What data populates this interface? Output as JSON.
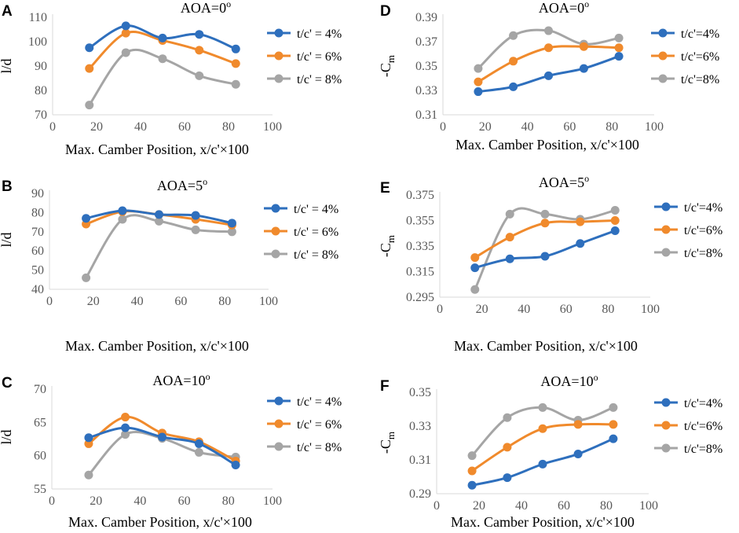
{
  "colors": {
    "blue": "#2e6fbd",
    "orange": "#f08a2c",
    "gray": "#a5a5a5",
    "axis": "#d9d9d9"
  },
  "chart_data": [
    {
      "panel": "A",
      "type": "line",
      "title": "AOA=0",
      "title_sup": "o",
      "xlabel": "Max. Camber Position, x/c'×100",
      "ylabel": "l/d",
      "ylabel_sub": "",
      "xlim": [
        0,
        100
      ],
      "ylim": [
        70,
        110
      ],
      "xticks": [
        0,
        20,
        40,
        60,
        80,
        100
      ],
      "xtick_labels": [
        "0",
        "20",
        "40",
        "60",
        "80",
        "100"
      ],
      "yticks": [
        70,
        80,
        90,
        100,
        110
      ],
      "ytick_labels": [
        "70",
        "80",
        "90",
        "100",
        "110"
      ],
      "x": [
        16.7,
        33.3,
        50,
        66.7,
        83.3
      ],
      "series": [
        {
          "name": "t/c' = 4%",
          "values": [
            97.5,
            106.5,
            101.5,
            103,
            97
          ]
        },
        {
          "name": "t/c' = 6%",
          "values": [
            89,
            103.5,
            100.5,
            96.5,
            91
          ]
        },
        {
          "name": "t/c' = 8%",
          "values": [
            74,
            95.5,
            93,
            86,
            82.5
          ]
        }
      ]
    },
    {
      "panel": "B",
      "type": "line",
      "title": "AOA=5",
      "title_sup": "o",
      "xlabel": "Max. Camber Position, x/c'×100",
      "ylabel": "l/d",
      "ylabel_sub": "",
      "xlim": [
        0,
        100
      ],
      "ylim": [
        40,
        90
      ],
      "xticks": [
        0,
        20,
        40,
        60,
        80,
        100
      ],
      "xtick_labels": [
        "0",
        "20",
        "40",
        "60",
        "80",
        "100"
      ],
      "yticks": [
        40,
        50,
        60,
        70,
        80,
        90
      ],
      "ytick_labels": [
        "40",
        "50",
        "60",
        "70",
        "80",
        "90"
      ],
      "x": [
        16.7,
        33.3,
        50,
        66.7,
        83.3
      ],
      "series": [
        {
          "name": "t/c' = 4%",
          "values": [
            77,
            81,
            79,
            78.5,
            74.5
          ]
        },
        {
          "name": "t/c' = 6%",
          "values": [
            74,
            80.5,
            79,
            76.5,
            73.5
          ]
        },
        {
          "name": "t/c' = 8%",
          "values": [
            46,
            76.5,
            75.5,
            71,
            70
          ]
        }
      ]
    },
    {
      "panel": "C",
      "type": "line",
      "title": "AOA=10",
      "title_sup": "o",
      "xlabel": "Max. Camber Position, x/c'×100",
      "ylabel": "l/d",
      "ylabel_sub": "",
      "xlim": [
        0,
        100
      ],
      "ylim": [
        55,
        70
      ],
      "xticks": [
        0,
        20,
        40,
        60,
        80,
        100
      ],
      "xtick_labels": [
        "0",
        "20",
        "40",
        "60",
        "80",
        "100"
      ],
      "yticks": [
        55,
        60,
        65,
        70
      ],
      "ytick_labels": [
        "55",
        "60",
        "65",
        "70"
      ],
      "x": [
        16.7,
        33.3,
        50,
        66.7,
        83.3
      ],
      "series": [
        {
          "name": "t/c' = 4%",
          "values": [
            62.7,
            64.2,
            62.8,
            61.8,
            58.6
          ]
        },
        {
          "name": "t/c' = 6%",
          "values": [
            61.8,
            65.8,
            63.4,
            62.1,
            59.2
          ]
        },
        {
          "name": "t/c' = 8%",
          "values": [
            57.1,
            63.2,
            62.6,
            60.5,
            59.8
          ]
        }
      ]
    },
    {
      "panel": "D",
      "type": "line",
      "title": "AOA=0",
      "title_sup": "o",
      "xlabel": "Max. Camber Position, x/c'×100",
      "ylabel": "-C",
      "ylabel_sub": "m",
      "xlim": [
        0,
        100
      ],
      "ylim": [
        0.31,
        0.39
      ],
      "xticks": [
        0,
        20,
        40,
        60,
        80,
        100
      ],
      "xtick_labels": [
        "0",
        "20",
        "40",
        "60",
        "80",
        "100"
      ],
      "yticks": [
        0.31,
        0.33,
        0.35,
        0.37,
        0.39
      ],
      "ytick_labels": [
        "0.31",
        "0.33",
        "0.35",
        "0.37",
        "0.39"
      ],
      "x": [
        16.7,
        33.3,
        50,
        66.7,
        83.3
      ],
      "series": [
        {
          "name": "t/c'=4%",
          "values": [
            0.329,
            0.333,
            0.342,
            0.348,
            0.358
          ]
        },
        {
          "name": "t/c'=6%",
          "values": [
            0.337,
            0.354,
            0.365,
            0.366,
            0.365
          ]
        },
        {
          "name": "t/c'=8%",
          "values": [
            0.348,
            0.375,
            0.379,
            0.368,
            0.373
          ]
        }
      ]
    },
    {
      "panel": "E",
      "type": "line",
      "title": "AOA=5",
      "title_sup": "o",
      "xlabel": "Max. Camber Position, x/c'×100",
      "ylabel": "-C",
      "ylabel_sub": "m",
      "xlim": [
        0,
        100
      ],
      "ylim": [
        0.295,
        0.375
      ],
      "xticks": [
        0,
        20,
        40,
        60,
        80,
        100
      ],
      "xtick_labels": [
        "0",
        "20",
        "40",
        "60",
        "80",
        "100"
      ],
      "yticks": [
        0.295,
        0.315,
        0.335,
        0.355,
        0.375
      ],
      "ytick_labels": [
        "0.295",
        "0.315",
        "0.335",
        "0.355",
        "0.375"
      ],
      "x": [
        16.7,
        33.3,
        50,
        66.7,
        83.3
      ],
      "series": [
        {
          "name": "t/c'=4%",
          "values": [
            0.318,
            0.325,
            0.327,
            0.337,
            0.347
          ]
        },
        {
          "name": "t/c'=6%",
          "values": [
            0.326,
            0.342,
            0.353,
            0.354,
            0.355
          ]
        },
        {
          "name": "t/c'=8%",
          "values": [
            0.301,
            0.36,
            0.36,
            0.356,
            0.363
          ]
        }
      ]
    },
    {
      "panel": "F",
      "type": "line",
      "title": "AOA=10",
      "title_sup": "o",
      "xlabel": "Max. Camber Position, x/c'×100",
      "ylabel": "-C",
      "ylabel_sub": "m",
      "xlim": [
        0,
        100
      ],
      "ylim": [
        0.29,
        0.35
      ],
      "xticks": [
        0,
        20,
        40,
        60,
        80,
        100
      ],
      "xtick_labels": [
        "0",
        "20",
        "40",
        "60",
        "80",
        "100"
      ],
      "yticks": [
        0.29,
        0.31,
        0.33,
        0.35
      ],
      "ytick_labels": [
        "0.29",
        "0.31",
        "0.33",
        "0.35"
      ],
      "x": [
        16.7,
        33.3,
        50,
        66.7,
        83.3
      ],
      "series": [
        {
          "name": "t/c'=4%",
          "values": [
            0.295,
            0.2995,
            0.3075,
            0.3135,
            0.3225
          ]
        },
        {
          "name": "t/c'=6%",
          "values": [
            0.3035,
            0.3175,
            0.3285,
            0.331,
            0.331
          ]
        },
        {
          "name": "t/c'=8%",
          "values": [
            0.3125,
            0.335,
            0.341,
            0.3335,
            0.341
          ]
        }
      ]
    }
  ]
}
